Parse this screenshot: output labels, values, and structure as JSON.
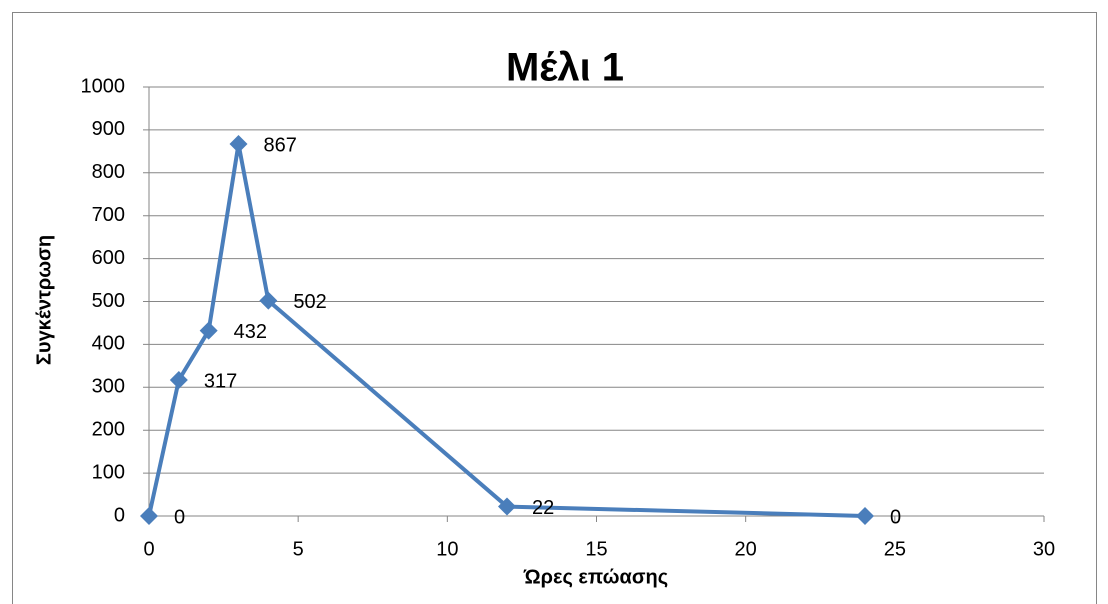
{
  "chart_data": {
    "type": "line",
    "title": "Μέλι 1",
    "xlabel": "Ώρες επώασης",
    "ylabel": "Συγκέντρωση",
    "x": [
      0,
      1,
      2,
      3,
      4,
      12,
      24
    ],
    "series": [
      {
        "name": "Μέλι 1",
        "color": "#4a7ebb",
        "values": [
          0,
          317,
          432,
          867,
          502,
          22,
          0
        ]
      }
    ],
    "xlim": [
      0,
      30
    ],
    "xticks": [
      0,
      5,
      10,
      15,
      20,
      25,
      30
    ],
    "ylim": [
      0,
      1000
    ],
    "yticks": [
      0,
      100,
      200,
      300,
      400,
      500,
      600,
      700,
      800,
      900,
      1000
    ],
    "grid": true
  }
}
